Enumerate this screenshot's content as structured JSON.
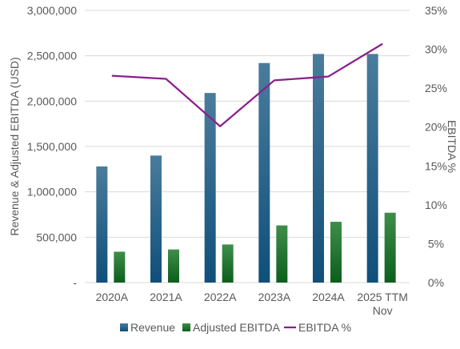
{
  "chart_data": {
    "type": "bar",
    "categories": [
      "2020A",
      "2021A",
      "2022A",
      "2023A",
      "2024A",
      "2025 TTM Nov"
    ],
    "series": [
      {
        "name": "Revenue",
        "kind": "bar",
        "axis": "left",
        "color": "#2E6A90",
        "values": [
          1280000,
          1400000,
          2090000,
          2420000,
          2520000,
          2520000
        ]
      },
      {
        "name": "Adjusted EBITDA",
        "kind": "bar",
        "axis": "left",
        "color": "#1E7A2A",
        "values": [
          340000,
          365000,
          420000,
          630000,
          670000,
          770000
        ]
      },
      {
        "name": "EBITDA %",
        "kind": "line",
        "axis": "right",
        "color": "#8B1F8B",
        "values": [
          26.6,
          26.2,
          20.1,
          26.0,
          26.5,
          30.7
        ]
      }
    ],
    "ylabel": "Revenue & Adjusted EBITDA (USD)",
    "y2label": "EBITDA %",
    "ylim": [
      0,
      3000000
    ],
    "y2lim": [
      0,
      35
    ],
    "yticks": [
      0,
      500000,
      1000000,
      1500000,
      2000000,
      2500000,
      3000000
    ],
    "ytick_labels": [
      "-",
      "500,000",
      "1,000,000",
      "1,500,000",
      "2,000,000",
      "2,500,000",
      "3,000,000"
    ],
    "y2ticks": [
      0,
      5,
      10,
      15,
      20,
      25,
      30,
      35
    ],
    "y2tick_labels": [
      "0%",
      "5%",
      "10%",
      "15%",
      "20%",
      "25%",
      "30%",
      "35%"
    ],
    "grid": true,
    "legend": "bottom"
  }
}
